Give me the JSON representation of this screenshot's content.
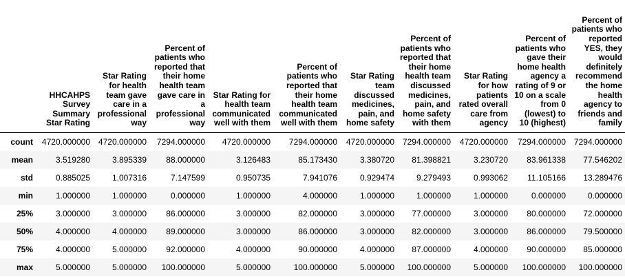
{
  "table": {
    "columns": [
      "HHCAHPS Survey Summary Star Rating",
      "Star Rating for health team gave care in a professional way",
      "Percent of patients who reported that their home health team gave care in a professional way",
      "Star Rating for health team communicated well with them",
      "Percent of patients who reported that their home health team communicated well with them",
      "Star Rating team discussed medicines, pain, and home safety",
      "Percent of patients who reported that their home health team discussed medicines, pain, and home safety with them",
      "Star Rating for how patients rated overall care from agency",
      "Percent of patients who gave their home health agency a rating of 9 or 10 on a scale from 0 (lowest) to 10 (highest)",
      "Percent of patients who reported YES, they would definitely recommend the home health agency to friends and family"
    ],
    "rows": [
      {
        "label": "count",
        "cells": [
          "4720.000000",
          "4720.000000",
          "7294.000000",
          "4720.000000",
          "7294.000000",
          "4720.000000",
          "7294.000000",
          "4720.000000",
          "7294.000000",
          "7294.000000"
        ]
      },
      {
        "label": "mean",
        "cells": [
          "3.519280",
          "3.895339",
          "88.000000",
          "3.126483",
          "85.173430",
          "3.380720",
          "81.398821",
          "3.230720",
          "83.961338",
          "77.546202"
        ]
      },
      {
        "label": "std",
        "cells": [
          "0.885025",
          "1.007316",
          "7.147599",
          "0.950735",
          "7.941076",
          "0.929474",
          "9.279493",
          "0.993062",
          "11.105166",
          "13.289476"
        ]
      },
      {
        "label": "min",
        "cells": [
          "1.000000",
          "1.000000",
          "0.000000",
          "1.000000",
          "4.000000",
          "1.000000",
          "1.000000",
          "1.000000",
          "0.000000",
          "0.000000"
        ]
      },
      {
        "label": "25%",
        "cells": [
          "3.000000",
          "3.000000",
          "86.000000",
          "3.000000",
          "82.000000",
          "3.000000",
          "77.000000",
          "3.000000",
          "80.000000",
          "72.000000"
        ]
      },
      {
        "label": "50%",
        "cells": [
          "4.000000",
          "4.000000",
          "89.000000",
          "3.000000",
          "86.000000",
          "3.000000",
          "82.000000",
          "3.000000",
          "86.000000",
          "79.500000"
        ]
      },
      {
        "label": "75%",
        "cells": [
          "4.000000",
          "5.000000",
          "92.000000",
          "4.000000",
          "90.000000",
          "4.000000",
          "87.000000",
          "4.000000",
          "90.000000",
          "85.000000"
        ]
      },
      {
        "label": "max",
        "cells": [
          "5.000000",
          "5.000000",
          "100.000000",
          "5.000000",
          "100.000000",
          "5.000000",
          "100.000000",
          "5.000000",
          "100.000000",
          "100.000000"
        ]
      }
    ]
  }
}
